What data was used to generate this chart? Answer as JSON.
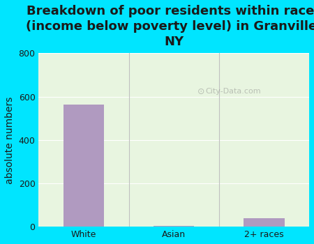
{
  "title": "Breakdown of poor residents within races\n(income below poverty level) in Granville,\nNY",
  "categories": [
    "White",
    "Asian",
    "2+ races"
  ],
  "values": [
    565,
    5,
    40
  ],
  "bar_color": "#b09ac0",
  "ylabel": "absolute numbers",
  "ylim": [
    0,
    800
  ],
  "yticks": [
    0,
    200,
    400,
    600,
    800
  ],
  "bg_outer": "#00e5ff",
  "bg_plot_top": "#e8f5e0",
  "bg_plot_bottom": "#f0f8f0",
  "title_fontsize": 13,
  "axis_label_fontsize": 10,
  "tick_fontsize": 9,
  "watermark": "City-Data.com"
}
